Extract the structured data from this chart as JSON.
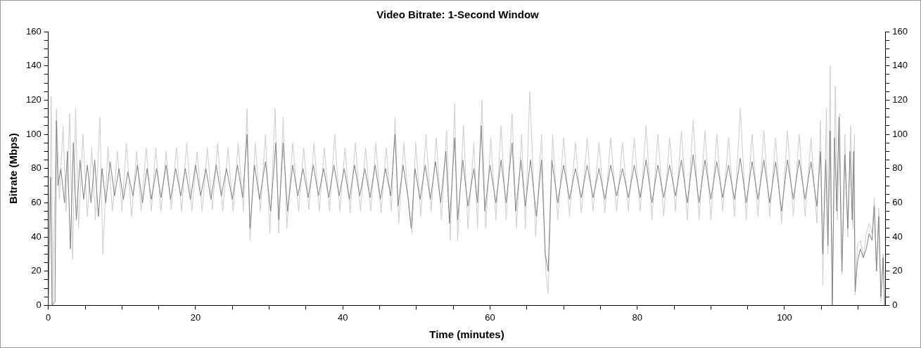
{
  "chart_data": {
    "type": "line",
    "title": "Video Bitrate: 1-Second Window",
    "xlabel": "Time (minutes)",
    "ylabel": "Bitrate (Mbps)",
    "marker": "none",
    "line_style": "solid",
    "xlim": [
      0,
      113.7
    ],
    "xticks": [
      0,
      {
        "value": 5,
        "label": null
      },
      {
        "value": 10,
        "label": null
      },
      {
        "value": 15,
        "label": null
      },
      20,
      {
        "value": 25,
        "label": null
      },
      {
        "value": 30,
        "label": null
      },
      {
        "value": 35,
        "label": null
      },
      40,
      {
        "value": 45,
        "label": null
      },
      {
        "value": 50,
        "label": null
      },
      {
        "value": 55,
        "label": null
      },
      60,
      {
        "value": 65,
        "label": null
      },
      {
        "value": 70,
        "label": null
      },
      {
        "value": 75,
        "label": null
      },
      80,
      {
        "value": 85,
        "label": null
      },
      {
        "value": 90,
        "label": null
      },
      {
        "value": 95,
        "label": null
      },
      100,
      {
        "value": 105,
        "label": null
      },
      {
        "value": 110,
        "label": null
      }
    ],
    "ylim": [
      0,
      160
    ],
    "yticks": [
      0,
      {
        "value": 5,
        "label": null
      },
      {
        "value": 10,
        "label": null
      },
      {
        "value": 15,
        "label": null
      },
      20,
      {
        "value": 25,
        "label": null
      },
      {
        "value": 30,
        "label": null
      },
      {
        "value": 35,
        "label": null
      },
      40,
      {
        "value": 45,
        "label": null
      },
      {
        "value": 50,
        "label": null
      },
      {
        "value": 55,
        "label": null
      },
      60,
      {
        "value": 65,
        "label": null
      },
      {
        "value": 70,
        "label": null
      },
      {
        "value": 75,
        "label": null
      },
      80,
      {
        "value": 85,
        "label": null
      },
      {
        "value": 90,
        "label": null
      },
      {
        "value": 95,
        "label": null
      },
      100,
      {
        "value": 105,
        "label": null
      },
      {
        "value": 110,
        "label": null
      },
      {
        "value": 115,
        "label": null
      },
      120,
      {
        "value": 125,
        "label": null
      },
      {
        "value": 130,
        "label": null
      },
      {
        "value": 135,
        "label": null
      },
      140,
      {
        "value": 145,
        "label": null
      },
      {
        "value": 150,
        "label": null
      },
      {
        "value": 155,
        "label": null
      },
      160
    ],
    "y2lim": [
      0,
      160
    ],
    "y2ticks": [
      0,
      {
        "value": 5,
        "label": null
      },
      {
        "value": 10,
        "label": null
      },
      {
        "value": 15,
        "label": null
      },
      20,
      {
        "value": 25,
        "label": null
      },
      {
        "value": 30,
        "label": null
      },
      {
        "value": 35,
        "label": null
      },
      40,
      {
        "value": 45,
        "label": null
      },
      {
        "value": 50,
        "label": null
      },
      {
        "value": 55,
        "label": null
      },
      60,
      {
        "value": 65,
        "label": null
      },
      {
        "value": 70,
        "label": null
      },
      {
        "value": 75,
        "label": null
      },
      80,
      {
        "value": 85,
        "label": null
      },
      {
        "value": 90,
        "label": null
      },
      {
        "value": 95,
        "label": null
      },
      100,
      {
        "value": 105,
        "label": null
      },
      {
        "value": 110,
        "label": null
      },
      {
        "value": 115,
        "label": null
      },
      120,
      {
        "value": 125,
        "label": null
      },
      {
        "value": 130,
        "label": null
      },
      {
        "value": 135,
        "label": null
      },
      140,
      {
        "value": 145,
        "label": null
      },
      {
        "value": 150,
        "label": null
      },
      {
        "value": 155,
        "label": null
      },
      160
    ],
    "series": [
      {
        "color": "#cccccc",
        "x": [
          0,
          0.4,
          0.6,
          1.1,
          1.5,
          2.0,
          2.4,
          2.9,
          3.3,
          3.7,
          4.1,
          4.7,
          5.3,
          5.9,
          6.4,
          7.0,
          7.4,
          8.1,
          8.7,
          9.4,
          10.0,
          10.6,
          11.3,
          12.0,
          12.6,
          13.3,
          14.0,
          14.6,
          15.3,
          16.0,
          16.7,
          17.4,
          18.1,
          18.8,
          19.5,
          20.2,
          20.9,
          21.6,
          22.3,
          23.0,
          23.7,
          24.4,
          25.1,
          25.8,
          26.5,
          27.0,
          27.4,
          28.1,
          28.8,
          29.5,
          30.1,
          30.8,
          31.3,
          31.9,
          32.4,
          33.2,
          34.0,
          34.7,
          35.4,
          36.1,
          36.8,
          37.5,
          38.2,
          38.9,
          39.6,
          40.3,
          41.0,
          41.7,
          42.4,
          43.1,
          43.8,
          44.5,
          45.2,
          45.9,
          46.6,
          47.1,
          47.6,
          48.3,
          49.0,
          49.4,
          49.9,
          50.6,
          51.3,
          52.0,
          52.7,
          53.4,
          54.1,
          54.6,
          55.2,
          55.6,
          56.4,
          57.0,
          57.8,
          58.3,
          58.9,
          59.4,
          60.1,
          60.8,
          61.5,
          62.2,
          63.0,
          63.6,
          64.3,
          64.8,
          65.4,
          66.2,
          67.0,
          67.6,
          67.9,
          68.5,
          69.2,
          70.0,
          70.8,
          71.6,
          72.4,
          73.2,
          74.0,
          74.8,
          75.6,
          76.4,
          77.2,
          78.0,
          78.8,
          79.6,
          80.4,
          81.2,
          82.0,
          82.8,
          83.6,
          84.4,
          85.2,
          86.0,
          86.8,
          87.6,
          88.4,
          89.2,
          90.0,
          90.8,
          91.6,
          92.4,
          93.2,
          94.0,
          94.8,
          95.6,
          96.4,
          97.2,
          98.0,
          98.8,
          99.6,
          100.4,
          101.2,
          102.0,
          102.8,
          103.6,
          104.4,
          104.9,
          105.2,
          105.7,
          105.9,
          106.2,
          106.5,
          106.9,
          107.2,
          107.5,
          107.8,
          108.2,
          108.6,
          109.0,
          109.3,
          109.5,
          109.6,
          109.9,
          110.3,
          110.7,
          111.1,
          111.5,
          111.9,
          112.2,
          112.5,
          112.8,
          113.1,
          113.4,
          113.6
        ],
        "values": [
          0,
          122,
          0,
          115,
          62,
          105,
          55,
          112,
          27,
          115,
          45,
          100,
          52,
          92,
          50,
          110,
          30,
          93,
          55,
          90,
          55,
          95,
          52,
          90,
          55,
          92,
          55,
          92,
          55,
          90,
          56,
          92,
          55,
          95,
          55,
          90,
          55,
          92,
          56,
          95,
          55,
          92,
          55,
          95,
          55,
          115,
          38,
          95,
          55,
          100,
          42,
          115,
          42,
          110,
          45,
          95,
          55,
          92,
          56,
          95,
          55,
          92,
          55,
          100,
          55,
          92,
          54,
          95,
          55,
          92,
          55,
          95,
          54,
          92,
          55,
          110,
          48,
          95,
          55,
          42,
          95,
          52,
          100,
          55,
          98,
          50,
          102,
          38,
          118,
          38,
          105,
          45,
          95,
          45,
          120,
          45,
          98,
          50,
          105,
          50,
          112,
          45,
          100,
          45,
          125,
          40,
          100,
          18,
          7,
          100,
          50,
          98,
          52,
          95,
          54,
          98,
          55,
          95,
          54,
          98,
          55,
          95,
          55,
          98,
          55,
          105,
          50,
          100,
          52,
          98,
          55,
          102,
          50,
          108,
          50,
          102,
          50,
          100,
          55,
          98,
          52,
          115,
          50,
          100,
          52,
          102,
          52,
          98,
          48,
          102,
          52,
          100,
          52,
          98,
          48,
          108,
          12,
          115,
          30,
          140,
          2,
          128,
          50,
          112,
          18,
          100,
          40,
          105,
          45,
          100,
          6,
          35,
          38,
          28,
          42,
          48,
          42,
          63,
          20,
          57,
          2,
          30,
          0
        ]
      },
      {
        "color": "#808080",
        "x": [
          0,
          0.3,
          0.5,
          0.9,
          1.1,
          1.3,
          1.7,
          2.2,
          2.6,
          3.0,
          3.4,
          3.8,
          4.3,
          4.8,
          5.3,
          5.8,
          6.3,
          6.8,
          7.3,
          7.8,
          8.4,
          9.0,
          9.6,
          10.2,
          10.8,
          11.5,
          12.1,
          12.8,
          13.4,
          14.0,
          14.7,
          15.3,
          16.0,
          16.6,
          17.3,
          18.0,
          18.6,
          19.3,
          20.0,
          20.7,
          21.4,
          22.1,
          22.8,
          23.5,
          24.2,
          25.0,
          25.7,
          26.4,
          27.0,
          27.4,
          28.0,
          28.7,
          29.5,
          30.2,
          30.9,
          31.3,
          31.9,
          32.5,
          33.2,
          33.9,
          34.6,
          35.3,
          36.0,
          36.7,
          37.4,
          38.1,
          38.8,
          39.5,
          40.2,
          40.9,
          41.6,
          42.3,
          43.0,
          43.7,
          44.4,
          45.1,
          45.8,
          46.5,
          47.1,
          47.5,
          48.2,
          48.9,
          49.3,
          49.8,
          50.5,
          51.2,
          51.9,
          52.6,
          53.3,
          54.0,
          54.5,
          55.2,
          55.6,
          56.3,
          57.0,
          57.8,
          58.3,
          58.8,
          59.3,
          60.0,
          60.8,
          61.5,
          62.2,
          63.0,
          63.5,
          64.2,
          64.8,
          65.5,
          66.3,
          67.0,
          67.5,
          67.9,
          68.4,
          69.2,
          70.0,
          70.8,
          71.6,
          72.4,
          73.2,
          74.0,
          74.8,
          75.6,
          76.4,
          77.2,
          78.0,
          78.8,
          79.6,
          80.4,
          81.2,
          82.0,
          82.8,
          83.6,
          84.4,
          85.2,
          86.0,
          86.8,
          87.6,
          88.4,
          89.2,
          90.0,
          90.8,
          91.6,
          92.4,
          93.2,
          94.0,
          94.8,
          95.6,
          96.4,
          97.2,
          98.0,
          98.8,
          99.6,
          100.4,
          101.2,
          102.0,
          102.8,
          103.6,
          104.4,
          104.9,
          105.2,
          105.6,
          105.9,
          106.2,
          106.5,
          106.8,
          107.1,
          107.4,
          107.8,
          108.2,
          108.6,
          108.9,
          109.2,
          109.4,
          109.6,
          109.9,
          110.3,
          110.7,
          111.1,
          111.5,
          111.9,
          112.2,
          112.5,
          112.8,
          113.1,
          113.4,
          113.6
        ],
        "values": [
          0,
          75,
          0,
          2,
          108,
          70,
          80,
          60,
          90,
          33,
          95,
          50,
          85,
          62,
          82,
          60,
          85,
          52,
          80,
          60,
          84,
          64,
          80,
          62,
          78,
          64,
          82,
          60,
          80,
          62,
          80,
          63,
          82,
          62,
          80,
          64,
          80,
          62,
          82,
          64,
          80,
          62,
          82,
          64,
          80,
          62,
          82,
          63,
          100,
          45,
          82,
          62,
          84,
          55,
          95,
          50,
          95,
          55,
          82,
          64,
          80,
          63,
          82,
          64,
          80,
          63,
          82,
          64,
          80,
          62,
          82,
          64,
          80,
          63,
          82,
          62,
          80,
          64,
          100,
          58,
          82,
          62,
          45,
          80,
          62,
          82,
          62,
          84,
          60,
          90,
          48,
          98,
          50,
          85,
          58,
          80,
          60,
          105,
          55,
          82,
          60,
          85,
          60,
          95,
          55,
          85,
          58,
          85,
          52,
          85,
          30,
          20,
          85,
          60,
          82,
          62,
          80,
          63,
          82,
          63,
          80,
          62,
          82,
          64,
          80,
          63,
          82,
          63,
          85,
          60,
          82,
          63,
          82,
          64,
          85,
          60,
          88,
          60,
          85,
          62,
          84,
          63,
          82,
          62,
          86,
          60,
          84,
          62,
          85,
          60,
          84,
          55,
          85,
          62,
          85,
          62,
          84,
          58,
          90,
          30,
          85,
          35,
          102,
          0,
          98,
          55,
          110,
          20,
          88,
          45,
          90,
          50,
          90,
          8,
          25,
          33,
          28,
          33,
          42,
          38,
          58,
          20,
          52,
          5,
          28,
          0
        ]
      }
    ]
  }
}
